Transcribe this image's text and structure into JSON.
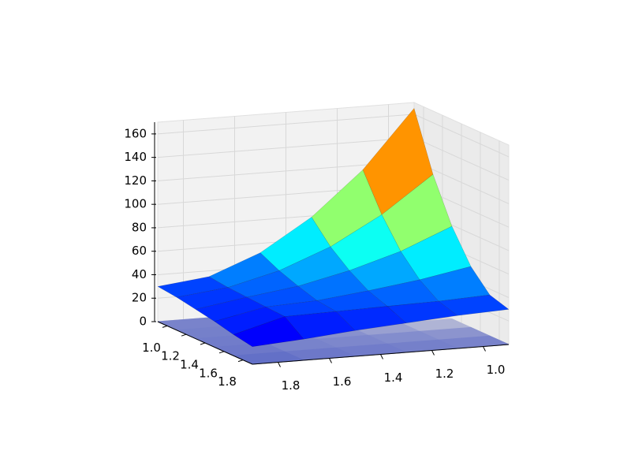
{
  "chart_data": {
    "type": "surface3d",
    "x": [
      0.9,
      1.1,
      1.3,
      1.5,
      1.7,
      1.9
    ],
    "y": [
      0.9,
      1.1,
      1.3,
      1.5,
      1.7,
      1.9
    ],
    "z": [
      [
        165,
        116,
        79,
        52,
        35,
        30
      ],
      [
        116,
        85,
        61,
        44,
        33,
        28
      ],
      [
        79,
        61,
        48,
        38,
        32,
        25
      ],
      [
        52,
        44,
        38,
        33,
        31,
        22
      ],
      [
        35,
        33,
        32,
        31,
        30,
        18
      ],
      [
        30,
        28,
        25,
        22,
        18,
        15
      ]
    ],
    "xlim": [
      0.9,
      1.9
    ],
    "ylim": [
      0.9,
      1.9
    ],
    "zlim": [
      0,
      170
    ],
    "xticks": [
      {
        "value": 1,
        "label": "1.0"
      },
      1.2,
      1.4,
      1.6,
      1.8
    ],
    "yticks": [
      {
        "value": 1,
        "label": "1.0"
      },
      1.2,
      1.4,
      1.6,
      1.8
    ],
    "zticks": [
      0,
      20,
      40,
      60,
      80,
      100,
      120,
      140,
      160
    ],
    "colormap": "jet",
    "floor_colormap": "coolwarm",
    "grid": true
  }
}
